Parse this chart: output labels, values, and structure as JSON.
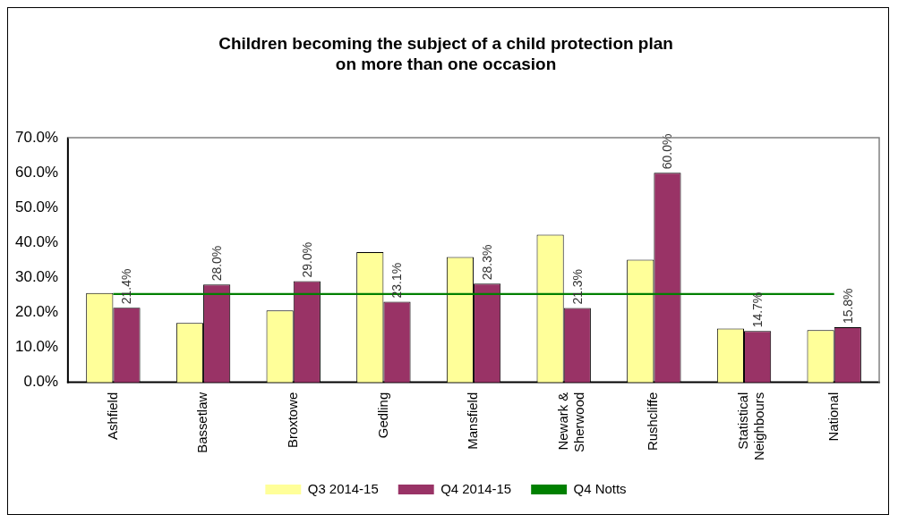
{
  "chart_data": {
    "type": "bar",
    "title": "Children becoming the subject of a child protection plan on more than one occasion",
    "categories": [
      "Ashfield",
      "Bassetlaw",
      "Broxtowe",
      "Gedling",
      "Mansfield",
      "Newark & Sherwood",
      "Rushcliffe",
      "Statistical Neighbours",
      "National"
    ],
    "series": [
      {
        "name": "Q3 2014-15",
        "color": "#ffff99",
        "values": [
          25.6,
          17.0,
          20.6,
          37.3,
          35.9,
          42.3,
          35.1,
          15.4,
          15.0
        ]
      },
      {
        "name": "Q4 2014-15",
        "color": "#993366",
        "values": [
          21.4,
          28.0,
          29.0,
          23.1,
          28.3,
          21.3,
          60.0,
          14.7,
          15.8
        ],
        "value_labels": [
          "21.4%",
          "28.0%",
          "29.0%",
          "23.1%",
          "28.3%",
          "21.3%",
          "60.0%",
          "14.7%",
          "15.8%"
        ]
      },
      {
        "name": "Q4 Notts",
        "type": "line",
        "color": "#008000",
        "values": [
          25.3,
          25.3,
          25.3,
          25.3,
          25.3,
          25.3,
          25.3,
          25.3,
          25.3
        ]
      }
    ],
    "ylim": [
      0,
      70
    ],
    "yticks": [
      {
        "value": 0,
        "label": "0.0%"
      },
      {
        "value": 10,
        "label": "10.0%"
      },
      {
        "value": 20,
        "label": "20.0%"
      },
      {
        "value": 30,
        "label": "30.0%"
      },
      {
        "value": 40,
        "label": "40.0%"
      },
      {
        "value": 50,
        "label": "50.0%"
      },
      {
        "value": 60,
        "label": "60.0%"
      },
      {
        "value": 70,
        "label": "70.0%"
      }
    ],
    "grid": false,
    "legend": "bottom",
    "marker": "none"
  }
}
